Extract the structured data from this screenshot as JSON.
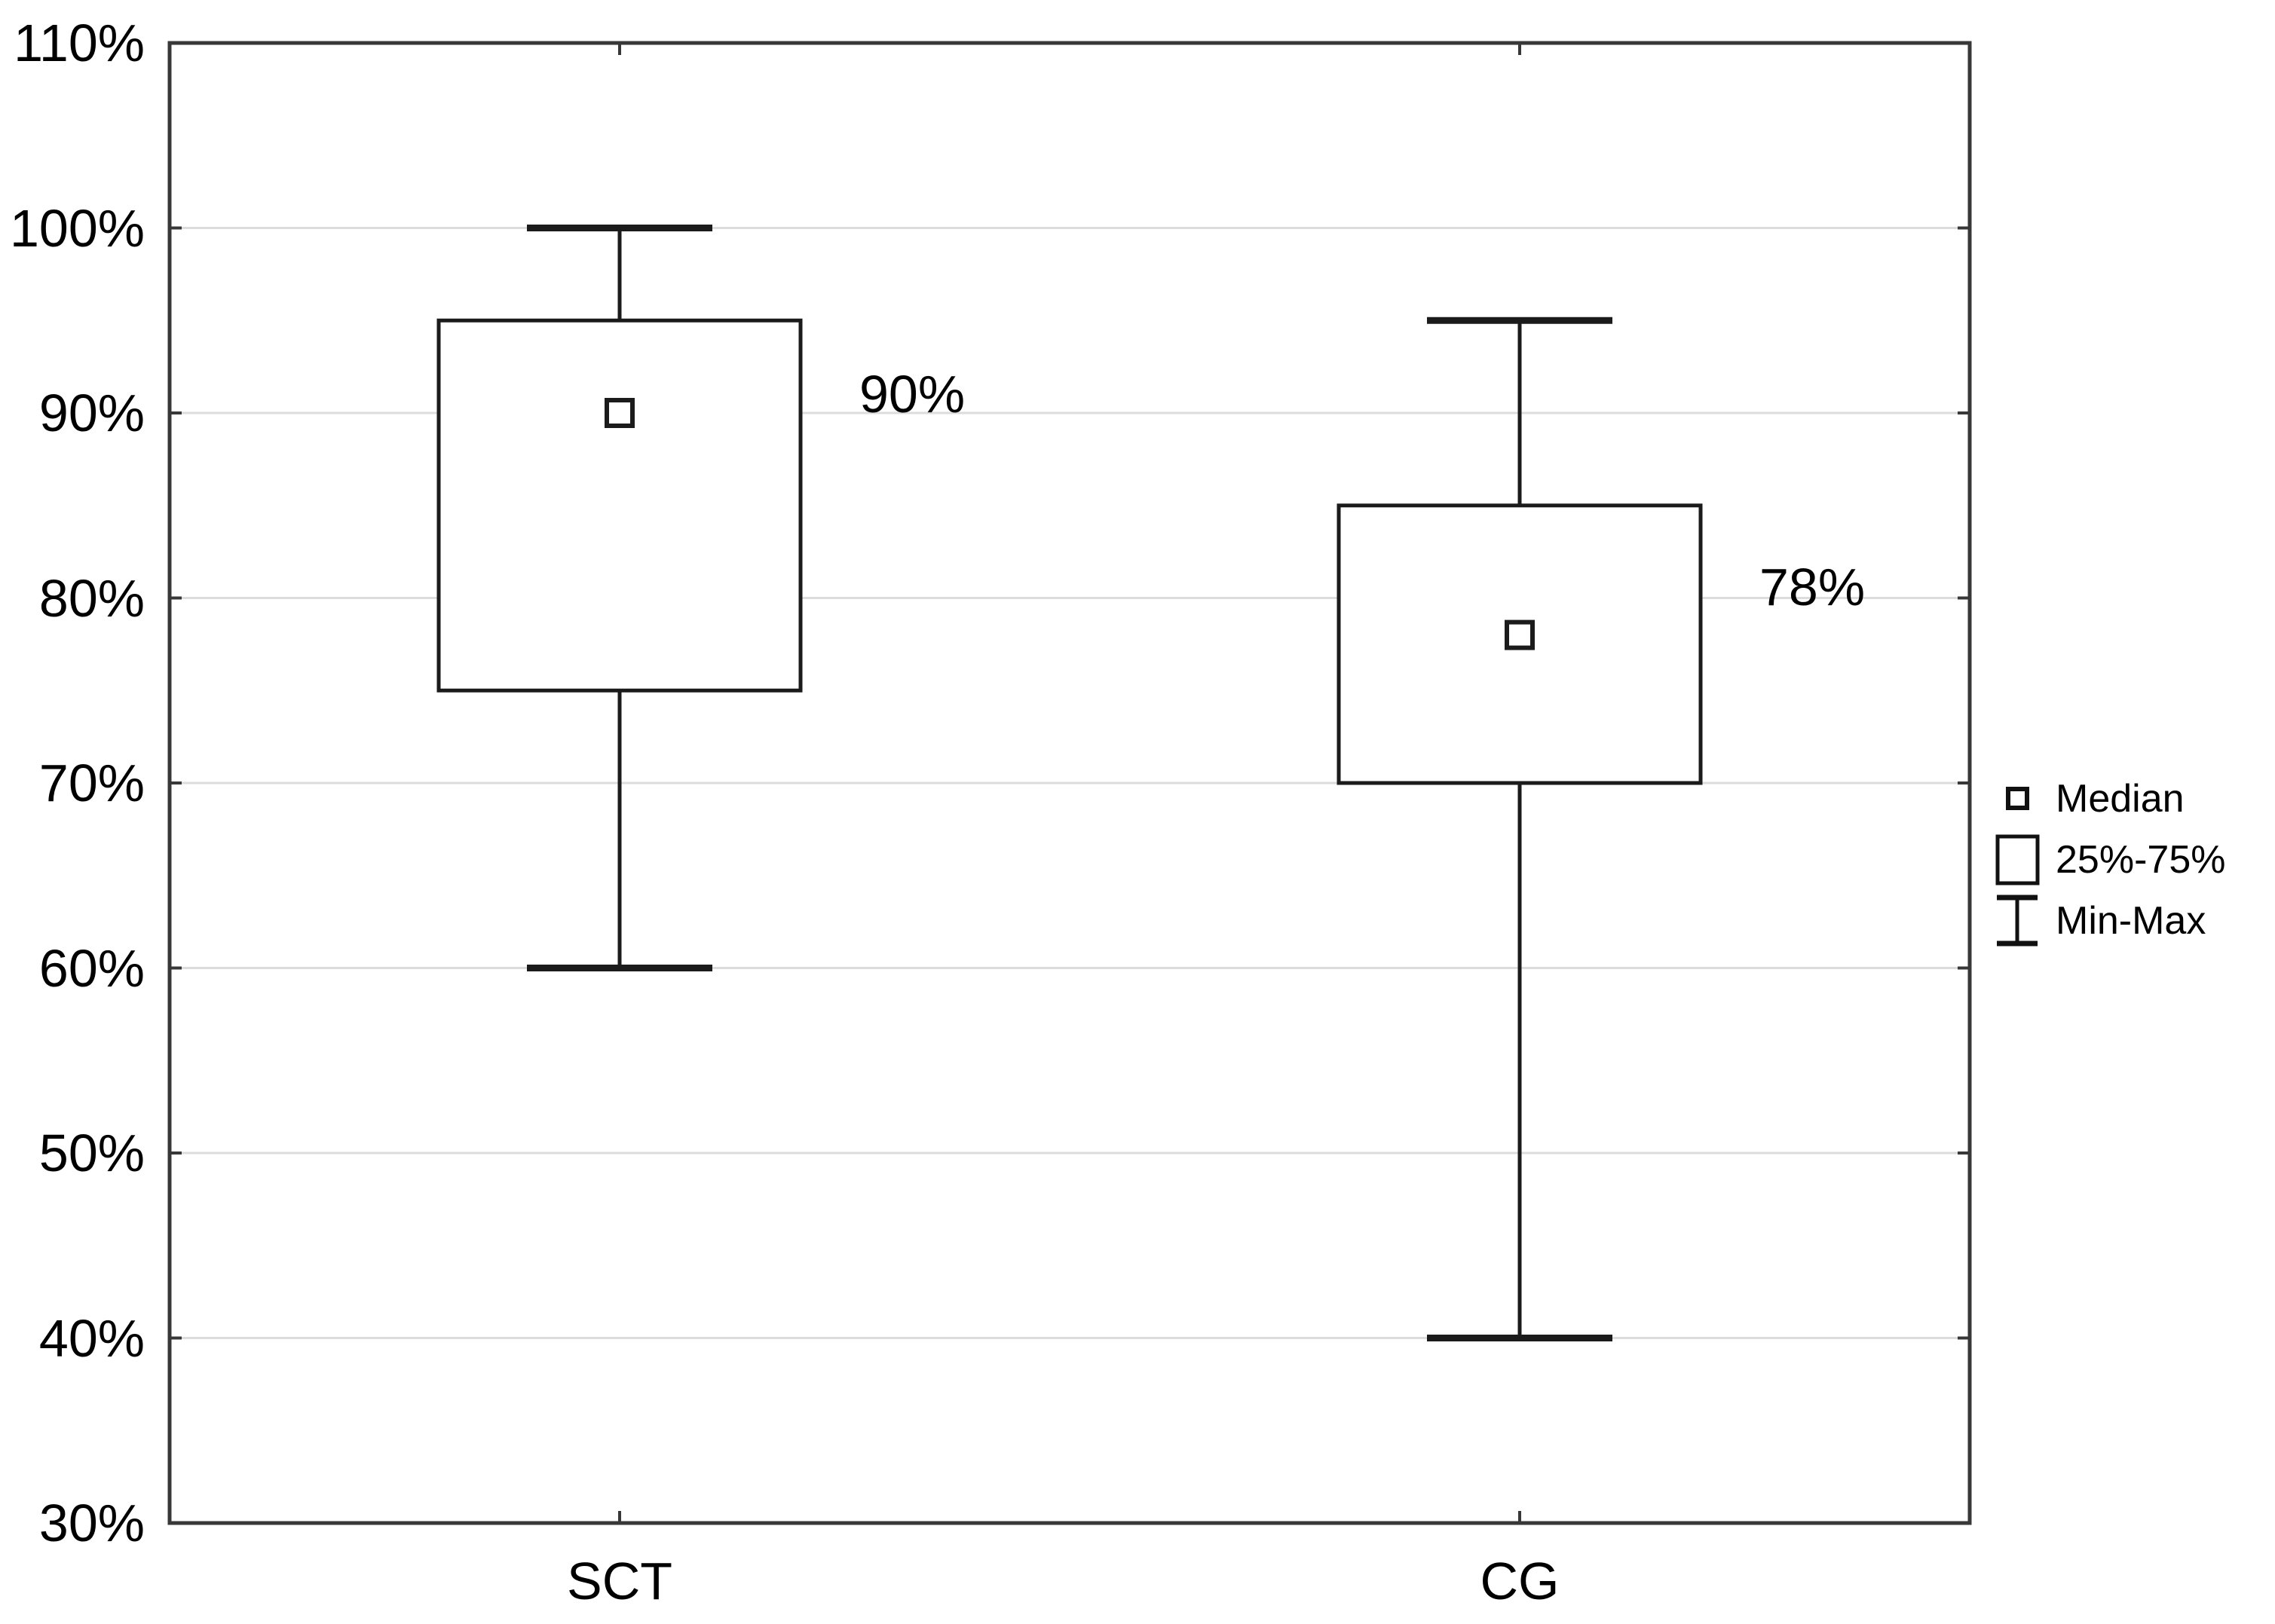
{
  "figure": {
    "kind": "box-and-whisker plot",
    "background": "#ffffff"
  },
  "chart_data": {
    "type": "box",
    "title": "",
    "xlabel": "",
    "ylabel": "",
    "categories": [
      "SCT",
      "CG"
    ],
    "y_axis": {
      "min": 30,
      "max": 110,
      "step": 10,
      "unit": "%",
      "tick_labels": [
        "30%",
        "40%",
        "50%",
        "60%",
        "70%",
        "80%",
        "90%",
        "100%",
        "110%"
      ]
    },
    "series": [
      {
        "name": "SCT",
        "min": 60,
        "q1": 75,
        "median": 90,
        "q3": 95,
        "max": 100,
        "label": "90%",
        "label_center_value": 91.0
      },
      {
        "name": "CG",
        "min": 40,
        "q1": 70,
        "median": 78,
        "q3": 85,
        "max": 95,
        "label": "78%",
        "label_center_value": 80.6
      }
    ],
    "legend": {
      "position": "right-outside-middle",
      "items": [
        {
          "icon": "median-square-icon",
          "label": "Median"
        },
        {
          "icon": "iqr-box-icon",
          "label": "25%-75%"
        },
        {
          "icon": "min-max-whisker-icon",
          "label": "Min-Max"
        }
      ]
    },
    "grid": {
      "horizontal": true,
      "vertical": false
    },
    "colors": {
      "line": "#1b1b1b",
      "border": "#383838",
      "grid": "#dcdcdc",
      "text": "#000000",
      "fill": "#ffffff"
    }
  }
}
